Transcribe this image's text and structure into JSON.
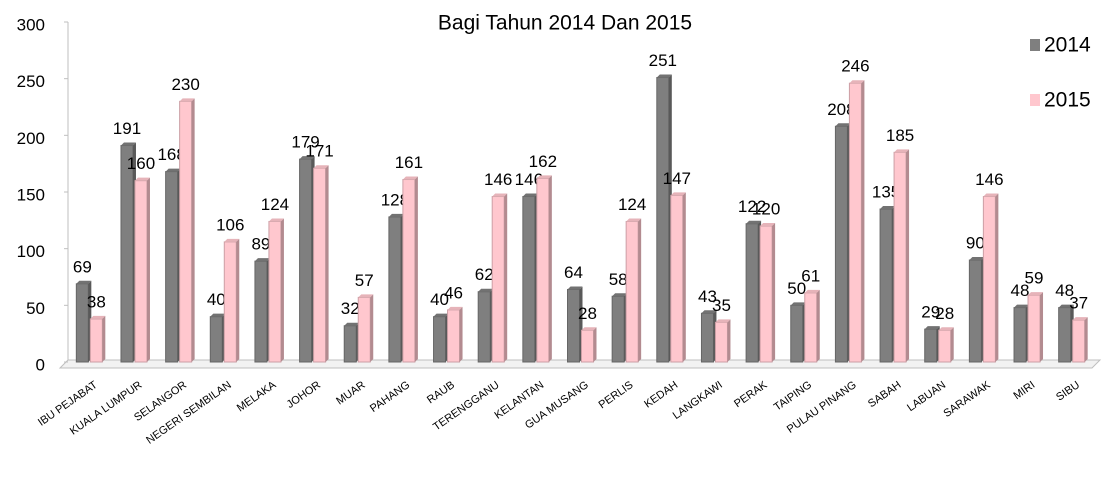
{
  "chart_data": {
    "type": "bar",
    "title": "Bagi Tahun 2014 Dan 2015",
    "categories": [
      "IBU PEJABAT",
      "KUALA LUMPUR",
      "SELANGOR",
      "NEGERI SEMBILAN",
      "MELAKA",
      "JOHOR",
      "MUAR",
      "PAHANG",
      "RAUB",
      "TERENGGANU",
      "KELANTAN",
      "GUA MUSANG",
      "PERLIS",
      "KEDAH",
      "LANGKAWI",
      "PERAK",
      "TAIPING",
      "PULAU PINANG",
      "SABAH",
      "LABUAN",
      "SARAWAK",
      "MIRI",
      "SIBU"
    ],
    "series": [
      {
        "name": "2014",
        "color": "#7f7f7f",
        "values": [
          69,
          191,
          168,
          40,
          89,
          179,
          32,
          128,
          40,
          62,
          146,
          64,
          58,
          251,
          43,
          122,
          50,
          208,
          135,
          29,
          90,
          48,
          48
        ]
      },
      {
        "name": "2015",
        "color": "#ffc7ce",
        "values": [
          38,
          160,
          230,
          106,
          124,
          171,
          57,
          161,
          46,
          146,
          162,
          28,
          124,
          147,
          35,
          120,
          61,
          246,
          185,
          28,
          146,
          59,
          37
        ]
      }
    ],
    "ylim": [
      0,
      300
    ],
    "yticks": [
      0,
      50,
      100,
      150,
      200,
      250,
      300
    ],
    "grid": false,
    "legend": "right"
  }
}
